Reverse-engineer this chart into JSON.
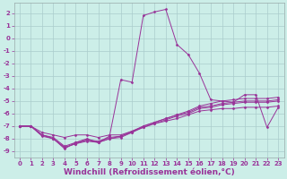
{
  "background_color": "#cceee8",
  "grid_color": "#aacccc",
  "line_color": "#993399",
  "xlabel": "Windchill (Refroidissement éolien,°C)",
  "xlabel_fontsize": 6.5,
  "xlim": [
    -0.5,
    23.5
  ],
  "ylim": [
    -9.5,
    2.8
  ],
  "yticks": [
    2,
    1,
    0,
    -1,
    -2,
    -3,
    -4,
    -5,
    -6,
    -7,
    -8,
    -9
  ],
  "xticks": [
    0,
    1,
    2,
    3,
    4,
    5,
    6,
    7,
    8,
    9,
    10,
    11,
    12,
    13,
    14,
    15,
    16,
    17,
    18,
    19,
    20,
    21,
    22,
    23
  ],
  "series": [
    {
      "x": [
        0,
        1,
        2,
        3,
        4,
        5,
        6,
        7,
        8,
        9,
        10,
        11,
        12,
        13,
        14,
        15,
        16,
        17,
        18,
        19,
        20,
        21,
        22,
        23
      ],
      "y": [
        -7.0,
        -7.0,
        -7.8,
        -8.0,
        -8.8,
        -8.3,
        -8.0,
        -8.3,
        -7.8,
        -3.3,
        -3.5,
        1.8,
        2.1,
        2.3,
        -0.5,
        -1.3,
        -2.8,
        -4.9,
        -5.0,
        -5.1,
        -4.5,
        -4.5,
        -7.1,
        -5.5
      ]
    },
    {
      "x": [
        0,
        1,
        2,
        3,
        4,
        5,
        6,
        7,
        8,
        9,
        10,
        11,
        12,
        13,
        14,
        15,
        16,
        17,
        18,
        19,
        20,
        21,
        22,
        23
      ],
      "y": [
        -7.0,
        -7.0,
        -7.5,
        -7.7,
        -7.9,
        -7.7,
        -7.7,
        -7.9,
        -7.7,
        -7.7,
        -7.4,
        -7.1,
        -6.8,
        -6.6,
        -6.4,
        -6.1,
        -5.8,
        -5.7,
        -5.6,
        -5.6,
        -5.5,
        -5.5,
        -5.5,
        -5.4
      ]
    },
    {
      "x": [
        0,
        1,
        2,
        3,
        4,
        5,
        6,
        7,
        8,
        9,
        10,
        11,
        12,
        13,
        14,
        15,
        16,
        17,
        18,
        19,
        20,
        21,
        22,
        23
      ],
      "y": [
        -7.0,
        -7.0,
        -7.7,
        -7.9,
        -8.6,
        -8.3,
        -8.1,
        -8.2,
        -7.9,
        -7.8,
        -7.4,
        -7.0,
        -6.7,
        -6.4,
        -6.1,
        -5.8,
        -5.4,
        -5.2,
        -5.0,
        -4.9,
        -4.8,
        -4.8,
        -4.8,
        -4.7
      ]
    },
    {
      "x": [
        0,
        1,
        2,
        3,
        4,
        5,
        6,
        7,
        8,
        9,
        10,
        11,
        12,
        13,
        14,
        15,
        16,
        17,
        18,
        19,
        20,
        21,
        22,
        23
      ],
      "y": [
        -7.0,
        -7.0,
        -7.7,
        -8.0,
        -8.7,
        -8.4,
        -8.1,
        -8.3,
        -8.0,
        -7.8,
        -7.5,
        -7.0,
        -6.7,
        -6.4,
        -6.1,
        -5.9,
        -5.5,
        -5.4,
        -5.2,
        -5.1,
        -5.0,
        -5.0,
        -5.0,
        -4.9
      ]
    },
    {
      "x": [
        0,
        1,
        2,
        3,
        4,
        5,
        6,
        7,
        8,
        9,
        10,
        11,
        12,
        13,
        14,
        15,
        16,
        17,
        18,
        19,
        20,
        21,
        22,
        23
      ],
      "y": [
        -7.0,
        -7.0,
        -7.7,
        -8.0,
        -8.7,
        -8.4,
        -8.2,
        -8.3,
        -8.0,
        -7.9,
        -7.5,
        -7.1,
        -6.8,
        -6.5,
        -6.2,
        -6.0,
        -5.6,
        -5.5,
        -5.3,
        -5.2,
        -5.1,
        -5.1,
        -5.1,
        -5.0
      ]
    }
  ]
}
